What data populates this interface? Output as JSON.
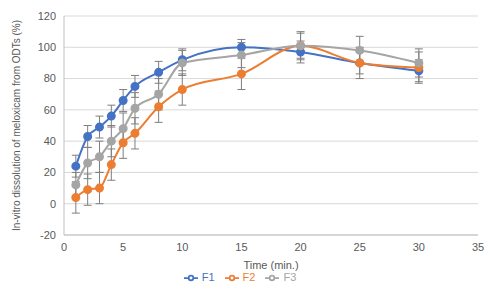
{
  "chart_data": {
    "type": "line",
    "x_label": "Time (min.)",
    "y_label": "In-vitro dissolution of meloxicam from ODTs (%)",
    "x": [
      1,
      2,
      3,
      4,
      5,
      6,
      8,
      10,
      15,
      20,
      25,
      30
    ],
    "series": [
      {
        "name": "F1",
        "color": "#4472c4",
        "marker": "circle",
        "line_style": "solid",
        "values": [
          24,
          43,
          49,
          56,
          66,
          75,
          84,
          92,
          100,
          97,
          90,
          85
        ],
        "errors": [
          7,
          7,
          7,
          7,
          7,
          7,
          7,
          7,
          5,
          7,
          7,
          7
        ]
      },
      {
        "name": "F2",
        "color": "#ed7d31",
        "marker": "circle",
        "line_style": "solid",
        "values": [
          4,
          9,
          10,
          25,
          39,
          45,
          62,
          73,
          83,
          101,
          90,
          87
        ],
        "errors": [
          10,
          10,
          10,
          10,
          10,
          10,
          10,
          10,
          10,
          9,
          10,
          10
        ]
      },
      {
        "name": "F3",
        "color": "#a5a5a5",
        "marker": "circle",
        "line_style": "solid",
        "values": [
          12,
          26,
          30,
          40,
          48,
          61,
          70,
          90,
          95,
          101,
          98,
          90
        ],
        "errors": [
          8,
          10,
          10,
          10,
          10,
          10,
          10,
          8,
          8,
          8,
          9,
          9
        ]
      }
    ],
    "xlim": [
      0,
      35
    ],
    "xticks": [
      0,
      5,
      10,
      15,
      20,
      25,
      30,
      35
    ],
    "ylim": [
      -20,
      120
    ],
    "yticks": [
      -20,
      0,
      20,
      40,
      60,
      80,
      100,
      120
    ],
    "grid": true,
    "legend": "bottom"
  }
}
